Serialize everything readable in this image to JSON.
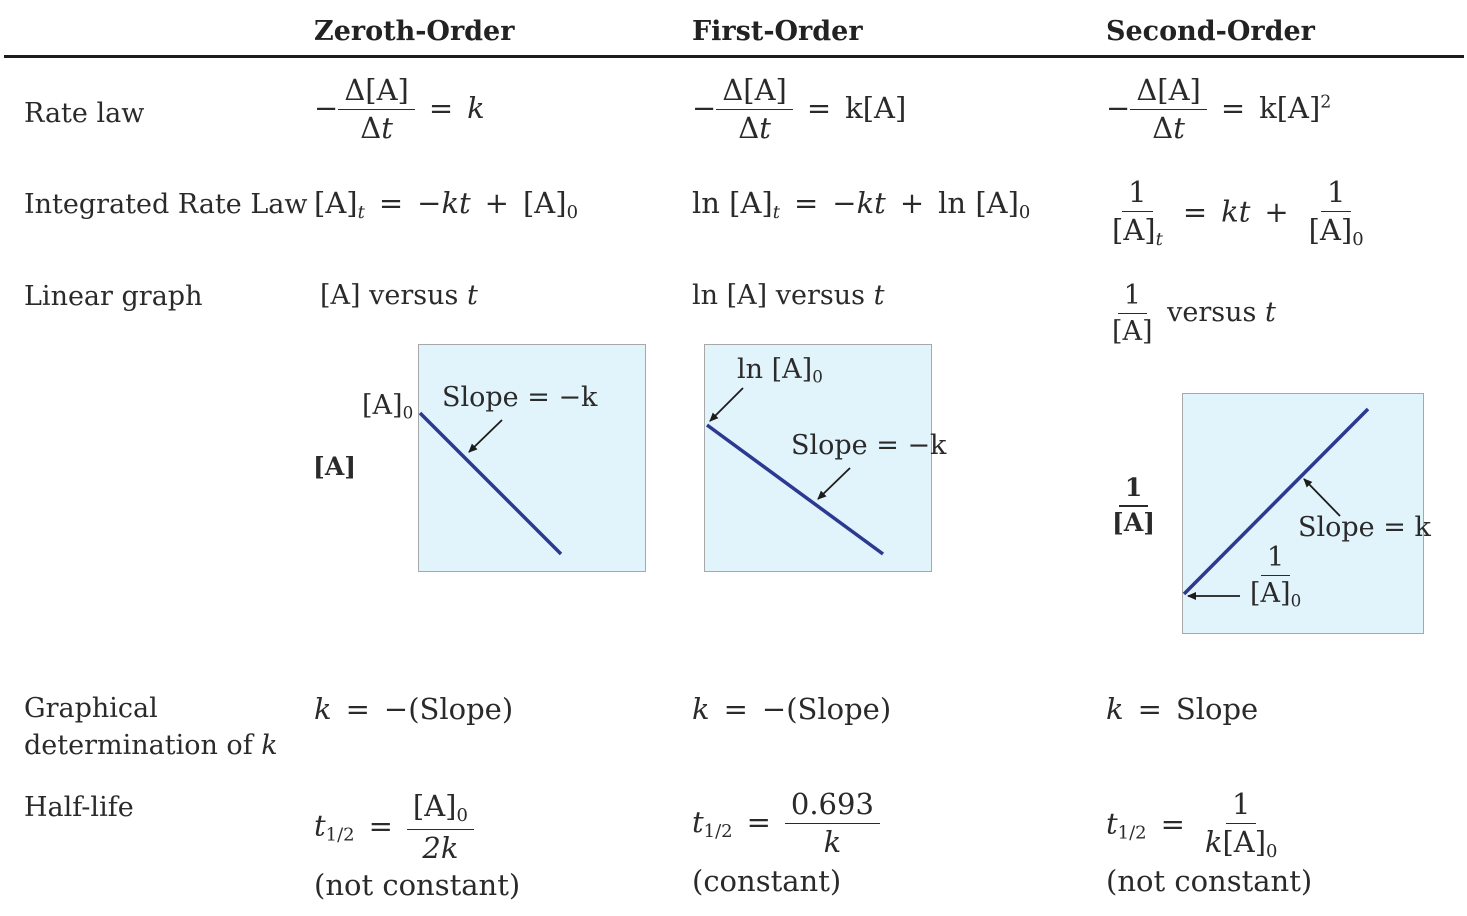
{
  "headers": {
    "zeroth": "Zeroth-Order",
    "first": "First-Order",
    "second": "Second-Order"
  },
  "rows": {
    "rate_law": "Rate law",
    "integrated": "Integrated Rate Law",
    "linear_graph": "Linear graph",
    "graphical_line1": "Graphical",
    "graphical_line2": "determination of",
    "graphical_k": "k",
    "half_life": "Half-life"
  },
  "symbols": {
    "minus": "−",
    "delta_A": "Δ[A]",
    "delta": "Δ",
    "t": "t",
    "k": "k",
    "eq": "=",
    "plus": "+",
    "A": "[A]",
    "one": "1",
    "ln": "ln",
    "kt": "kt",
    "zero": "0",
    "two": "2",
    "versus": "versus",
    "t_half": "t",
    "half": "1/2",
    "two_k": "2k",
    "ln2_value": "0.693"
  },
  "rate_law": {
    "zeroth_rhs": "k",
    "first_rhs": "k[A]",
    "second_rhs": "k[A]"
  },
  "linear_graph": {
    "zeroth": "[A] versus",
    "first": "ln [A] versus",
    "second": "versus"
  },
  "graphs": {
    "zeroth": {
      "y_axis": "[A]",
      "intercept": "[A]",
      "slope": "Slope = −k"
    },
    "first": {
      "intercept": "ln [A]",
      "slope": "Slope = −k"
    },
    "second": {
      "y_axis_num": "1",
      "y_axis_den": "[A]",
      "intercept_num": "1",
      "intercept_den": "[A]",
      "slope": "Slope = k"
    }
  },
  "graphical_k": {
    "zeroth": "k = −(Slope)",
    "first": "k = −(Slope)",
    "second": "k = Slope"
  },
  "half_life": {
    "zeroth_note": "(not constant)",
    "first_note": "(constant)",
    "second_note": "(not constant)",
    "second_den": "k[A]"
  },
  "colors": {
    "line": "#2b3990",
    "graph_bg": "#e1f3fb",
    "rule": "#1c1c1c"
  }
}
